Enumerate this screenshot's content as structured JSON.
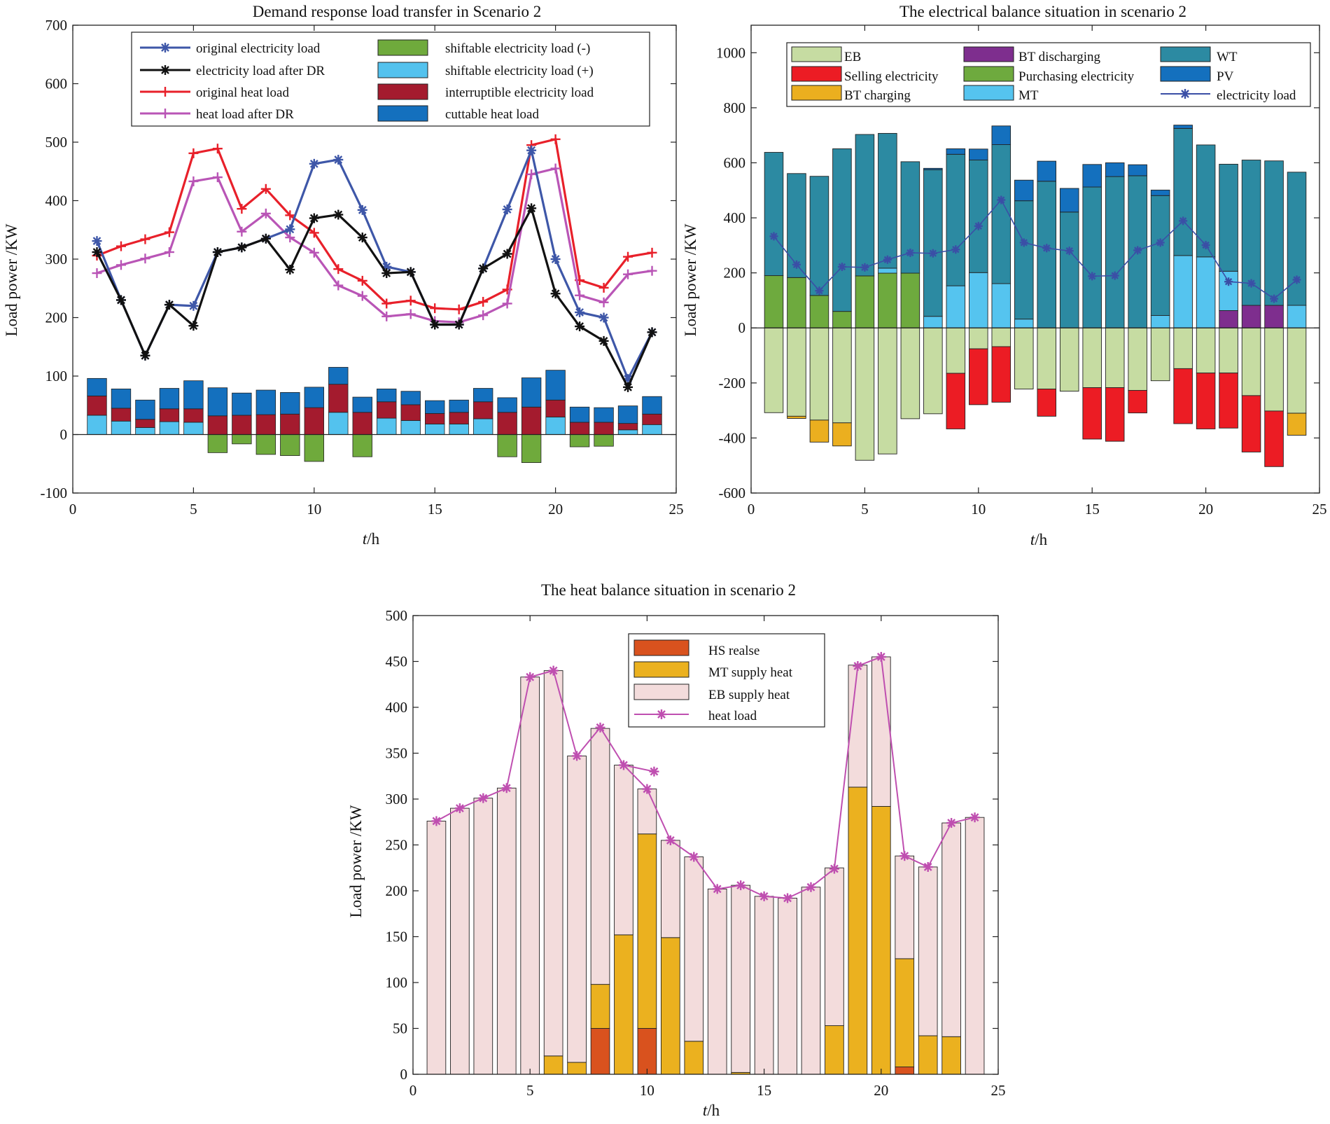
{
  "colors": {
    "blue_line": "#3E57A8",
    "black_line": "#111111",
    "red_line": "#E8202A",
    "purple_line": "#B955B6",
    "shift_minus": "#6FAA3C",
    "shift_plus": "#53C2EE",
    "interruptible": "#A41B2E",
    "cuttable": "#1470BE",
    "EB": "#C6DCA2",
    "selling": "#EC1C24",
    "bt_charging": "#EBAF1F",
    "bt_discharging": "#7E2E8E",
    "purchasing": "#6EAA3E",
    "MT": "#55C4EF",
    "WT": "#2C8AA2",
    "PV": "#1470BE",
    "elec_load_line": "#3B4FA6",
    "hs_release": "#D9521E",
    "mt_heat": "#EBB11F",
    "eb_heat": "#F3DCDC",
    "heat_load_line": "#BF4FB0"
  },
  "chart_data": [
    {
      "id": "dr",
      "type": "bar+line",
      "title": "Demand response load transfer in Scenario 2",
      "xlabel_italic": "t",
      "xlabel_rest": "/h",
      "ylabel": "Load power /KW",
      "xlim": [
        0,
        25
      ],
      "ylim": [
        -100,
        700
      ],
      "xticks": [
        "0",
        "5",
        "10",
        "15",
        "20",
        "25"
      ],
      "yticks": [
        "-100",
        "0",
        "100",
        "200",
        "300",
        "400",
        "500",
        "600",
        "700"
      ],
      "hours": [
        1,
        2,
        3,
        4,
        5,
        6,
        7,
        8,
        9,
        10,
        11,
        12,
        13,
        14,
        15,
        16,
        17,
        18,
        19,
        20,
        21,
        22,
        23,
        24
      ],
      "lines": [
        {
          "name": "original electricity load",
          "marker": "star",
          "color": "#3E57A8",
          "values": [
            331,
            230,
            135,
            222,
            220,
            312,
            320,
            335,
            351,
            463,
            470,
            384,
            287,
            278,
            188,
            188,
            284,
            385,
            486,
            300,
            209,
            200,
            95,
            175
          ]
        },
        {
          "name": "electricity load after DR",
          "marker": "star",
          "color": "#111111",
          "values": [
            312,
            230,
            135,
            222,
            186,
            312,
            320,
            335,
            282,
            370,
            376,
            337,
            276,
            278,
            188,
            188,
            284,
            309,
            387,
            241,
            185,
            160,
            81,
            175
          ]
        },
        {
          "name": "original heat load",
          "marker": "plus",
          "color": "#E8202A",
          "values": [
            306,
            322,
            334,
            346,
            481,
            489,
            386,
            420,
            375,
            345,
            283,
            263,
            224,
            229,
            216,
            214,
            227,
            248,
            495,
            505,
            264,
            251,
            304,
            311
          ]
        },
        {
          "name": "heat load after DR",
          "marker": "plus",
          "color": "#B955B6",
          "values": [
            276,
            290,
            301,
            312,
            433,
            440,
            347,
            378,
            337,
            311,
            255,
            237,
            202,
            206,
            194,
            192,
            204,
            224,
            445,
            455,
            238,
            226,
            274,
            280
          ]
        }
      ],
      "bars": [
        {
          "name": "shiftable electricity load (-)",
          "color": "#6FAA3C",
          "values": [
            0,
            0,
            0,
            0,
            0,
            -31,
            -16,
            -34,
            -36,
            -46,
            0,
            -38,
            0,
            0,
            0,
            0,
            0,
            -38,
            -48,
            0,
            -21,
            -20,
            0,
            0
          ]
        },
        {
          "name": "shiftable electricity load (+)",
          "color": "#53C2EE",
          "values": [
            33,
            23,
            12,
            22,
            21,
            0,
            0,
            0,
            0,
            0,
            38,
            0,
            28,
            24,
            18,
            18,
            27,
            0,
            0,
            30,
            0,
            0,
            8,
            17
          ]
        },
        {
          "name": "interruptible electricity load",
          "color": "#A41B2E",
          "values": [
            33,
            22,
            14,
            22,
            23,
            32,
            33,
            34,
            35,
            46,
            48,
            38,
            28,
            27,
            18,
            20,
            29,
            38,
            47,
            29,
            21,
            21,
            11,
            18
          ]
        },
        {
          "name": "cuttable heat load",
          "color": "#1470BE",
          "values": [
            30,
            33,
            33,
            35,
            48,
            48,
            38,
            42,
            37,
            35,
            29,
            26,
            22,
            23,
            22,
            21,
            23,
            25,
            50,
            51,
            26,
            25,
            30,
            30
          ]
        }
      ]
    },
    {
      "id": "elec",
      "type": "stacked-bar+line",
      "title": "The electrical balance situation in scenario 2",
      "xlabel_italic": "t",
      "xlabel_rest": "/h",
      "ylabel": "Load power /KW",
      "xlim": [
        0,
        25
      ],
      "ylim": [
        -600,
        1100
      ],
      "xticks": [
        "0",
        "5",
        "10",
        "15",
        "20",
        "25"
      ],
      "yticks": [
        "-600",
        "-400",
        "-200",
        "0",
        "200",
        "400",
        "600",
        "800",
        "1000"
      ],
      "hours": [
        1,
        2,
        3,
        4,
        5,
        6,
        7,
        8,
        9,
        10,
        11,
        12,
        13,
        14,
        15,
        16,
        17,
        18,
        19,
        20,
        21,
        22,
        23,
        24
      ],
      "positive": [
        {
          "name": "Purchasing electricity",
          "color": "#6EAA3E",
          "values": [
            190,
            183,
            118,
            60,
            189,
            199,
            199,
            0,
            0,
            0,
            0,
            0,
            0,
            0,
            0,
            0,
            0,
            0,
            0,
            0,
            0,
            0,
            0,
            0
          ]
        },
        {
          "name": "BT discharging",
          "color": "#7E2E8E",
          "values": [
            0,
            0,
            0,
            0,
            0,
            0,
            0,
            0,
            0,
            0,
            0,
            0,
            0,
            0,
            0,
            0,
            0,
            0,
            0,
            0,
            63,
            82,
            82,
            0
          ]
        },
        {
          "name": "MT",
          "color": "#55C4EF",
          "values": [
            0,
            0,
            0,
            0,
            0,
            18,
            0,
            42,
            153,
            201,
            161,
            32,
            0,
            0,
            0,
            0,
            0,
            45,
            263,
            258,
            143,
            0,
            0,
            82
          ]
        },
        {
          "name": "WT",
          "color": "#2C8AA2",
          "values": [
            448,
            378,
            433,
            591,
            514,
            490,
            405,
            533,
            478,
            409,
            505,
            430,
            533,
            421,
            512,
            550,
            553,
            436,
            462,
            407,
            389,
            528,
            525,
            484
          ]
        },
        {
          "name": "PV",
          "color": "#1470BE",
          "values": [
            0,
            0,
            0,
            0,
            0,
            0,
            0,
            5,
            20,
            40,
            68,
            75,
            73,
            86,
            82,
            50,
            40,
            20,
            12,
            0,
            0,
            0,
            0,
            0
          ]
        }
      ],
      "negative": [
        {
          "name": "EB",
          "color": "#C6DCA2",
          "values": [
            -308,
            -321,
            -335,
            -345,
            -481,
            -458,
            -330,
            -312,
            -165,
            -76,
            -68,
            -222,
            -222,
            -230,
            -217,
            -217,
            -227,
            -192,
            -148,
            -164,
            -164,
            -246,
            -302,
            -310
          ]
        },
        {
          "name": "Selling electricity",
          "color": "#EC1C24",
          "values": [
            0,
            0,
            0,
            0,
            0,
            0,
            0,
            0,
            -202,
            -203,
            -202,
            0,
            -99,
            0,
            -187,
            -195,
            -82,
            0,
            -200,
            -203,
            -200,
            -205,
            -202,
            0
          ]
        },
        {
          "name": "BT charging",
          "color": "#EBAF1F",
          "values": [
            0,
            -8,
            -80,
            -84,
            0,
            0,
            0,
            0,
            0,
            0,
            0,
            0,
            0,
            0,
            0,
            0,
            0,
            0,
            0,
            0,
            0,
            0,
            0,
            -80
          ]
        }
      ],
      "line": {
        "name": "electricity load",
        "color": "#3B4FA6",
        "values": [
          333,
          230,
          135,
          222,
          220,
          248,
          273,
          271,
          285,
          370,
          465,
          310,
          290,
          280,
          188,
          190,
          282,
          310,
          389,
          301,
          168,
          162,
          106,
          175
        ]
      },
      "legend": [
        {
          "name": "EB",
          "color": "#C6DCA2",
          "kind": "patch"
        },
        {
          "name": "Selling electricity",
          "color": "#EC1C24",
          "kind": "patch"
        },
        {
          "name": "BT charging",
          "color": "#EBAF1F",
          "kind": "patch"
        },
        {
          "name": "BT discharging",
          "color": "#7E2E8E",
          "kind": "patch"
        },
        {
          "name": "Purchasing electricity",
          "color": "#6EAA3E",
          "kind": "patch"
        },
        {
          "name": "MT",
          "color": "#55C4EF",
          "kind": "patch"
        },
        {
          "name": "WT",
          "color": "#2C8AA2",
          "kind": "patch"
        },
        {
          "name": "PV",
          "color": "#1470BE",
          "kind": "patch"
        },
        {
          "name": "electricity load",
          "color": "#3B4FA6",
          "kind": "line"
        }
      ]
    },
    {
      "id": "heat",
      "type": "stacked-bar+line",
      "title": "The heat balance situation in scenario 2",
      "xlabel_italic": "t",
      "xlabel_rest": "/h",
      "ylabel": "Load power /KW",
      "xlim": [
        0,
        25
      ],
      "ylim": [
        0,
        500
      ],
      "xticks": [
        "0",
        "5",
        "10",
        "15",
        "20",
        "25"
      ],
      "yticks": [
        "0",
        "50",
        "100",
        "150",
        "200",
        "250",
        "300",
        "350",
        "400",
        "450",
        "500"
      ],
      "hours": [
        1,
        2,
        3,
        4,
        5,
        6,
        7,
        8,
        9,
        10,
        11,
        12,
        13,
        14,
        15,
        16,
        17,
        18,
        19,
        20,
        21,
        22,
        23,
        24
      ],
      "positive": [
        {
          "name": "HS realse",
          "color": "#D9521E",
          "values": [
            0,
            0,
            0,
            0,
            0,
            0,
            0,
            50,
            0,
            50,
            0,
            0,
            0,
            0,
            0,
            0,
            0,
            0,
            0,
            0,
            8,
            0,
            0,
            0
          ]
        },
        {
          "name": "MT supply heat",
          "color": "#EBB11F",
          "values": [
            0,
            0,
            0,
            0,
            0,
            20,
            13,
            48,
            152,
            212,
            149,
            36,
            0,
            2,
            0,
            0,
            0,
            53,
            313,
            292,
            118,
            42,
            41,
            0
          ]
        },
        {
          "name": "EB supply heat",
          "color": "#F3DCDC",
          "values": [
            276,
            290,
            301,
            312,
            433,
            420,
            334,
            279,
            185,
            49,
            106,
            201,
            202,
            204,
            194,
            192,
            204,
            172,
            133,
            163,
            112,
            184,
            233,
            280
          ]
        }
      ],
      "line": {
        "name": "heat load",
        "color": "#BF4FB0",
        "values": [
          276,
          290,
          301,
          312,
          433,
          440,
          347,
          378,
          337,
          311,
          255,
          237,
          202,
          206,
          194,
          192,
          204,
          224,
          445,
          455,
          238,
          226,
          274,
          280
        ],
        "extra_point": {
          "x": 10.3,
          "y": 330
        }
      },
      "legend": [
        {
          "name": "HS realse",
          "color": "#D9521E",
          "kind": "patch"
        },
        {
          "name": "MT supply heat",
          "color": "#EBB11F",
          "kind": "patch"
        },
        {
          "name": "EB supply heat",
          "color": "#F3DCDC",
          "kind": "patch"
        },
        {
          "name": "heat load",
          "color": "#BF4FB0",
          "kind": "line"
        }
      ]
    }
  ]
}
